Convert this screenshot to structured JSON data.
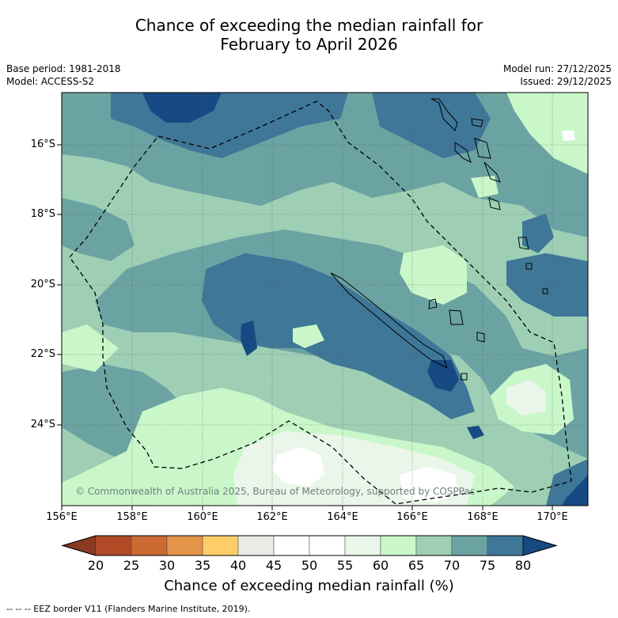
{
  "title": {
    "line1": "Chance of exceeding the median rainfall for",
    "line2": "February to April 2026"
  },
  "meta": {
    "base_period": "Base period: 1981-2018",
    "model": "Model: ACCESS-S2",
    "model_run": "Model run: 27/12/2025",
    "issued": "Issued: 29/12/2025"
  },
  "map": {
    "latitudes": [
      "16°S",
      "18°S",
      "20°S",
      "22°S",
      "24°S"
    ],
    "longitudes": [
      "156°E",
      "158°E",
      "160°E",
      "162°E",
      "164°E",
      "166°E",
      "168°E",
      "170°E"
    ],
    "copyright": "© Commonwealth of Australia 2025, Bureau of Meteorology, supported by COSPPac",
    "colors": {
      "c45_50": "#ffffff",
      "c50_55": "#ffffff",
      "c55_60": "#eaf6ea",
      "c60_65": "#c9f7c9",
      "c65_70": "#9ecfb4",
      "c70_75": "#6ba3a3",
      "c75_80": "#3f7798",
      "c80": "#174a82"
    }
  },
  "colorbar": {
    "ticks": [
      "20",
      "25",
      "30",
      "35",
      "40",
      "45",
      "50",
      "55",
      "60",
      "65",
      "70",
      "75",
      "80"
    ],
    "colors": [
      "#b34a26",
      "#cc6a33",
      "#e3954a",
      "#fccd69",
      "#ebebe6",
      "#ffffff",
      "#ffffff",
      "#eaf6ea",
      "#c9f7c9",
      "#9ecfb4",
      "#6ba3a3",
      "#3f7798"
    ],
    "low_extend": "#8a3a20",
    "high_extend": "#174a82",
    "title": "Chance of exceeding median rainfall (%)"
  },
  "footnote": "--  --  -- EEZ border V11 (Flanders Marine Institute, 2019)."
}
